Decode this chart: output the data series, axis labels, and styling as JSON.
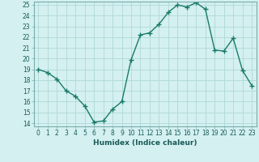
{
  "x": [
    0,
    1,
    2,
    3,
    4,
    5,
    6,
    7,
    8,
    9,
    10,
    11,
    12,
    13,
    14,
    15,
    16,
    17,
    18,
    19,
    20,
    21,
    22,
    23
  ],
  "y": [
    19,
    18.7,
    18.1,
    17.0,
    16.5,
    15.6,
    14.1,
    14.2,
    15.3,
    16.0,
    19.9,
    22.2,
    22.4,
    23.2,
    24.3,
    25.0,
    24.8,
    25.2,
    24.6,
    20.8,
    20.7,
    21.9,
    18.9,
    17.5
  ],
  "ylim_min": 14,
  "ylim_max": 25,
  "yticks": [
    14,
    15,
    16,
    17,
    18,
    19,
    20,
    21,
    22,
    23,
    24,
    25
  ],
  "xlim_min": -0.5,
  "xlim_max": 23.5,
  "xticks": [
    0,
    1,
    2,
    3,
    4,
    5,
    6,
    7,
    8,
    9,
    10,
    11,
    12,
    13,
    14,
    15,
    16,
    17,
    18,
    19,
    20,
    21,
    22,
    23
  ],
  "xlabel": "Humidex (Indice chaleur)",
  "line_color": "#1a7a6a",
  "marker": "+",
  "bg_color": "#d4f0f0",
  "grid_color": "#b0d8d8",
  "tick_label_color": "#1a5a5a",
  "xlabel_color": "#1a5a5a",
  "tick_fontsize": 5.5,
  "xlabel_fontsize": 6.5,
  "linewidth": 1.0,
  "markersize": 4,
  "markeredgewidth": 1.0
}
